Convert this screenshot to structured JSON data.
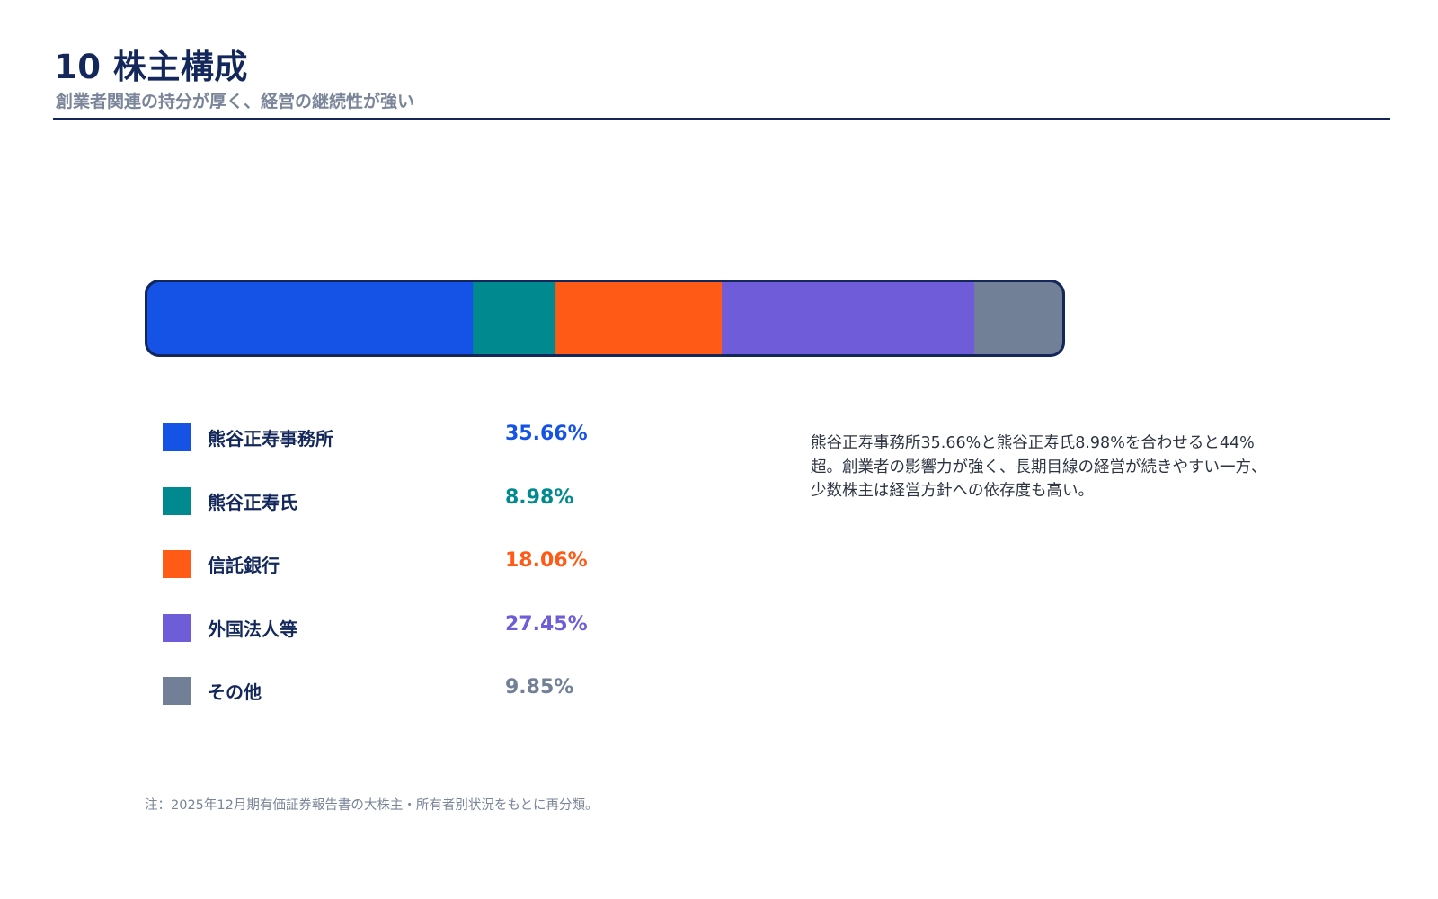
{
  "header": {
    "title": "10 株主構成",
    "subtitle": "創業者関連の持分が厚く、経営の継続性が強い"
  },
  "chart_data": {
    "type": "bar",
    "orientation": "horizontal-stacked-100",
    "categories": [
      "熊谷正寿事務所",
      "熊谷正寿氏",
      "信託銀行",
      "外国法人等",
      "その他"
    ],
    "values": [
      35.66,
      8.98,
      18.06,
      27.45,
      9.85
    ],
    "value_labels": [
      "35.66%",
      "8.98%",
      "18.06%",
      "27.45%",
      "9.85%"
    ],
    "unit": "%",
    "colors": [
      "#1553e6",
      "#00898f",
      "#ff5a16",
      "#6f5cd9",
      "#728097"
    ],
    "xlim": [
      0,
      100
    ],
    "grid": false,
    "legend_position": "below-left"
  },
  "description": "熊谷正寿事務所35.66%と熊谷正寿氏8.98%を合わせると44%超。創業者の影響力が強く、長期目線の経営が続きやすい一方、少数株主は経営方針への依存度も高い。",
  "footnote": "注：2025年12月期有価証券報告書の大株主・所有者別状況をもとに再分類。",
  "theme": {
    "accent": "#13275a"
  }
}
